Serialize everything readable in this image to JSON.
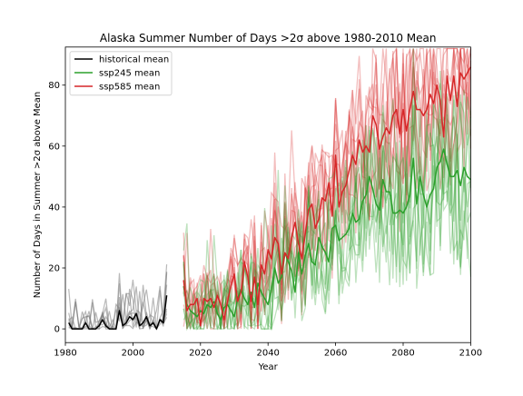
{
  "chart_data": {
    "type": "line",
    "title": "Alaska Summer Number of Days >2σ above 1980-2010 Mean",
    "xlabel": "Year",
    "ylabel": "Number of Days in Summer >2σ above Mean",
    "xlim": [
      1980,
      2100
    ],
    "ylim": [
      -4.5,
      92.5
    ],
    "x_ticks": [
      1980,
      2000,
      2020,
      2040,
      2060,
      2080,
      2100
    ],
    "y_ticks": [
      0,
      20,
      40,
      60,
      80
    ],
    "grid": false,
    "legend": {
      "placement": "top-left",
      "entries": [
        {
          "label": "historical mean",
          "color": "#000000"
        },
        {
          "label": "ssp245 mean",
          "color": "#2ca02c"
        },
        {
          "label": "ssp585 mean",
          "color": "#d62728"
        }
      ]
    },
    "colors": {
      "historical": "#000000",
      "historical_members": "#808080",
      "ssp245": "#2ca02c",
      "ssp585": "#d62728"
    },
    "series": [
      {
        "name": "historical mean",
        "kind": "mean",
        "x": [
          1981,
          1982,
          1983,
          1984,
          1985,
          1986,
          1987,
          1988,
          1989,
          1990,
          1991,
          1992,
          1993,
          1994,
          1995,
          1996,
          1997,
          1998,
          1999,
          2000,
          2001,
          2002,
          2003,
          2004,
          2005,
          2006,
          2007,
          2008,
          2009,
          2010
        ],
        "values": [
          2,
          0,
          0,
          0,
          0,
          2,
          0,
          0,
          0,
          1,
          3,
          1,
          0,
          0,
          0,
          6,
          1,
          2,
          4,
          3,
          5,
          1,
          2,
          4,
          1,
          2,
          0,
          3,
          2,
          11
        ]
      },
      {
        "name": "ssp245 mean",
        "kind": "mean",
        "x": [
          2015,
          2016,
          2017,
          2018,
          2019,
          2020,
          2021,
          2022,
          2023,
          2024,
          2025,
          2026,
          2027,
          2028,
          2029,
          2030,
          2031,
          2032,
          2033,
          2034,
          2035,
          2036,
          2037,
          2038,
          2039,
          2040,
          2041,
          2042,
          2043,
          2044,
          2045,
          2046,
          2047,
          2048,
          2049,
          2050,
          2051,
          2052,
          2053,
          2054,
          2055,
          2056,
          2057,
          2058,
          2059,
          2060,
          2061,
          2062,
          2063,
          2064,
          2065,
          2066,
          2067,
          2068,
          2069,
          2070,
          2071,
          2072,
          2073,
          2074,
          2075,
          2076,
          2077,
          2078,
          2079,
          2080,
          2081,
          2082,
          2083,
          2084,
          2085,
          2086,
          2087,
          2088,
          2089,
          2090,
          2091,
          2092,
          2093,
          2094,
          2095,
          2096,
          2097,
          2098,
          2099,
          2100
        ],
        "values": [
          14,
          8,
          6,
          5,
          4,
          6,
          5,
          8,
          7,
          9,
          5,
          3,
          7,
          8,
          6,
          4,
          10,
          13,
          10,
          8,
          12,
          7,
          15,
          12,
          10,
          8,
          13,
          20,
          15,
          17,
          25,
          22,
          19,
          12,
          25,
          18,
          24,
          28,
          22,
          21,
          30,
          27,
          25,
          22,
          33,
          34,
          29,
          30,
          31,
          33,
          38,
          35,
          36,
          42,
          44,
          50,
          46,
          41,
          39,
          49,
          45,
          45,
          38,
          38,
          39,
          38,
          40,
          44,
          56,
          41,
          50,
          44,
          40,
          44,
          46,
          53,
          55,
          59,
          54,
          50,
          50,
          52,
          47,
          53,
          50,
          49
        ]
      },
      {
        "name": "ssp585 mean",
        "kind": "mean",
        "x": [
          2015,
          2016,
          2017,
          2018,
          2019,
          2020,
          2021,
          2022,
          2023,
          2024,
          2025,
          2026,
          2027,
          2028,
          2029,
          2030,
          2031,
          2032,
          2033,
          2034,
          2035,
          2036,
          2037,
          2038,
          2039,
          2040,
          2041,
          2042,
          2043,
          2044,
          2045,
          2046,
          2047,
          2048,
          2049,
          2050,
          2051,
          2052,
          2053,
          2054,
          2055,
          2056,
          2057,
          2058,
          2059,
          2060,
          2061,
          2062,
          2063,
          2064,
          2065,
          2066,
          2067,
          2068,
          2069,
          2070,
          2071,
          2072,
          2073,
          2074,
          2075,
          2076,
          2077,
          2078,
          2079,
          2080,
          2081,
          2082,
          2083,
          2084,
          2085,
          2086,
          2087,
          2088,
          2089,
          2090,
          2091,
          2092,
          2093,
          2094,
          2095,
          2096,
          2097,
          2098,
          2099,
          2100
        ],
        "values": [
          16,
          6,
          8,
          8,
          10,
          1,
          10,
          9,
          10,
          7,
          11,
          8,
          3,
          9,
          14,
          18,
          9,
          12,
          22,
          17,
          9,
          17,
          8,
          21,
          18,
          26,
          23,
          30,
          28,
          18,
          25,
          23,
          30,
          35,
          28,
          23,
          31,
          39,
          41,
          33,
          36,
          43,
          42,
          48,
          37,
          57,
          40,
          45,
          47,
          52,
          57,
          54,
          62,
          58,
          60,
          58,
          70,
          67,
          59,
          63,
          66,
          64,
          70,
          72,
          64,
          72,
          65,
          72,
          78,
          72,
          72,
          70,
          72,
          77,
          74,
          80,
          75,
          63,
          83,
          75,
          83,
          73,
          84,
          82,
          84,
          86
        ]
      }
    ]
  }
}
